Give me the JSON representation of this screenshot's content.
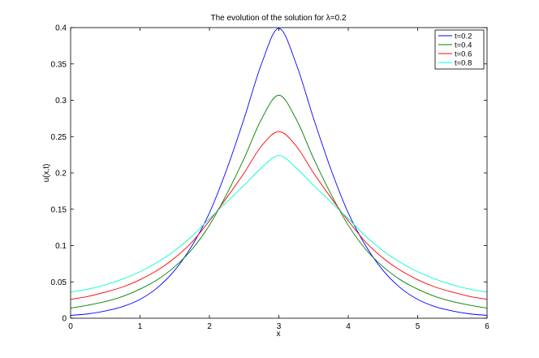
{
  "chart_data": {
    "type": "line",
    "title": "The evolution of the solution for λ=0.2",
    "xlabel": "x",
    "ylabel": "u(x,t)",
    "xlim": [
      0,
      6
    ],
    "ylim": [
      0,
      0.4
    ],
    "x_ticks": [
      "0",
      "1",
      "2",
      "3",
      "4",
      "5",
      "6"
    ],
    "y_ticks": [
      "0",
      "0.05",
      "0.1",
      "0.15",
      "0.2",
      "0.25",
      "0.3",
      "0.35",
      "0.4"
    ],
    "grid": false,
    "legend_position": "top-right",
    "x": [
      0,
      0.25,
      0.5,
      0.75,
      1,
      1.25,
      1.5,
      1.75,
      2,
      2.25,
      2.5,
      2.75,
      3,
      3.25,
      3.5,
      3.75,
      4,
      4.25,
      4.5,
      4.75,
      5,
      5.25,
      5.5,
      5.75,
      6
    ],
    "series": [
      {
        "name": "t=0.2",
        "color": "#0000ff",
        "values": [
          0.004,
          0.006,
          0.01,
          0.016,
          0.026,
          0.042,
          0.066,
          0.1,
          0.145,
          0.205,
          0.275,
          0.35,
          0.399,
          0.35,
          0.275,
          0.205,
          0.145,
          0.1,
          0.066,
          0.042,
          0.026,
          0.016,
          0.01,
          0.006,
          0.004
        ]
      },
      {
        "name": "t=0.4",
        "color": "#008000",
        "values": [
          0.014,
          0.018,
          0.023,
          0.03,
          0.04,
          0.053,
          0.071,
          0.095,
          0.128,
          0.171,
          0.22,
          0.274,
          0.307,
          0.274,
          0.22,
          0.171,
          0.128,
          0.095,
          0.071,
          0.053,
          0.04,
          0.03,
          0.023,
          0.018,
          0.014
        ]
      },
      {
        "name": "t=0.6",
        "color": "#ff0000",
        "values": [
          0.026,
          0.03,
          0.036,
          0.043,
          0.053,
          0.066,
          0.083,
          0.105,
          0.134,
          0.166,
          0.2,
          0.237,
          0.257,
          0.237,
          0.2,
          0.166,
          0.134,
          0.105,
          0.083,
          0.066,
          0.053,
          0.043,
          0.036,
          0.03,
          0.026
        ]
      },
      {
        "name": "t=0.8",
        "color": "#00ffcc",
        "values": [
          0.036,
          0.04,
          0.046,
          0.054,
          0.064,
          0.077,
          0.093,
          0.113,
          0.137,
          0.16,
          0.183,
          0.207,
          0.224,
          0.207,
          0.183,
          0.16,
          0.137,
          0.113,
          0.093,
          0.077,
          0.064,
          0.054,
          0.046,
          0.04,
          0.036
        ]
      }
    ]
  }
}
